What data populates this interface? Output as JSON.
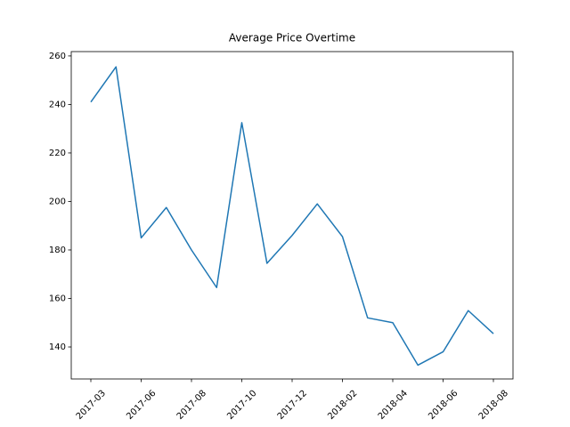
{
  "chart_data": {
    "type": "line",
    "title": "Average Price Overtime",
    "categories": [
      "2017-03",
      null,
      "2017-06",
      null,
      "2017-08",
      null,
      "2017-10",
      null,
      "2017-12",
      null,
      "2018-02",
      null,
      "2018-04",
      null,
      "2018-06",
      null,
      "2018-08"
    ],
    "values": [
      241,
      255.5,
      185,
      197.5,
      180,
      164.5,
      232.5,
      174.5,
      186,
      199,
      185.5,
      152,
      150,
      132.5,
      138,
      155,
      145.5
    ],
    "color": "#1f77b4",
    "ylim": [
      126.8,
      261.8
    ],
    "yticks": [
      140,
      160,
      180,
      200,
      220,
      240,
      260
    ],
    "grid": false
  }
}
